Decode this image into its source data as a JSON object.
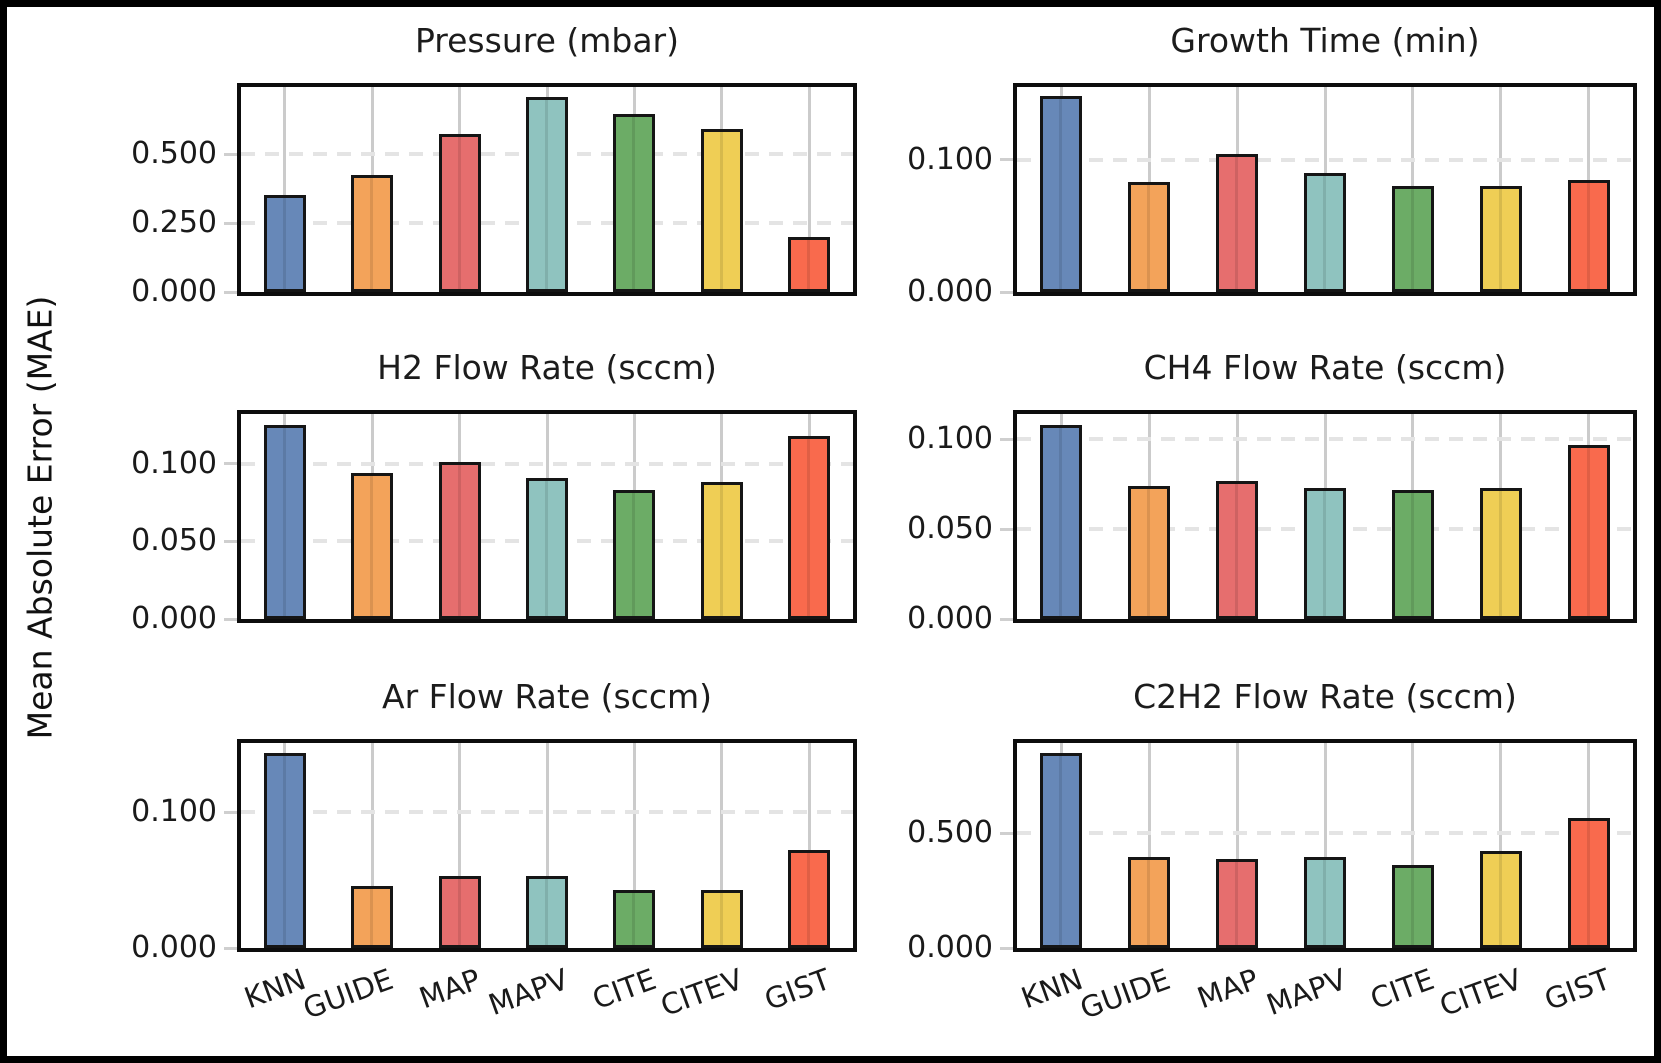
{
  "figure": {
    "ylabel": "Mean Absolute Error (MAE)",
    "methods": [
      "KNN",
      "GUIDE",
      "MAP",
      "MAPV",
      "CITE",
      "CITEV",
      "GIST"
    ],
    "bar_colors": [
      "#6788B8",
      "#F3A35A",
      "#E66E6E",
      "#8FC3BF",
      "#6CAC66",
      "#EFCE55",
      "#F96A4D"
    ],
    "bar_edge_color": "#151515",
    "grid_x_color": "#cbcbcb",
    "grid_y_color": "#e4e4e4",
    "layout": "3 rows x 2 columns of bar subplots, shared y-axis label, x tick labels only under bottom row"
  },
  "chart_data": [
    {
      "type": "bar",
      "title": "Pressure (mbar)",
      "categories": [
        "KNN",
        "GUIDE",
        "MAP",
        "MAPV",
        "CITE",
        "CITEV",
        "GIST"
      ],
      "values": [
        0.352,
        0.425,
        0.573,
        0.708,
        0.648,
        0.594,
        0.2
      ],
      "ylim": [
        0,
        0.745
      ],
      "yticks": [
        0,
        0.25,
        0.5
      ],
      "yticklabels": [
        "0.000",
        "0.250",
        "0.500"
      ],
      "grid": "x solid, y dashed",
      "legend": "none"
    },
    {
      "type": "bar",
      "title": "Growth Time (min)",
      "categories": [
        "KNN",
        "GUIDE",
        "MAP",
        "MAPV",
        "CITE",
        "CITEV",
        "GIST"
      ],
      "values": [
        0.148,
        0.083,
        0.104,
        0.09,
        0.08,
        0.08,
        0.085
      ],
      "ylim": [
        0,
        0.155
      ],
      "yticks": [
        0,
        0.1
      ],
      "yticklabels": [
        "0.000",
        "0.100"
      ],
      "grid": "x solid, y dashed",
      "legend": "none"
    },
    {
      "type": "bar",
      "title": "H2 Flow Rate (sccm)",
      "categories": [
        "KNN",
        "GUIDE",
        "MAP",
        "MAPV",
        "CITE",
        "CITEV",
        "GIST"
      ],
      "values": [
        0.125,
        0.094,
        0.101,
        0.091,
        0.083,
        0.088,
        0.118
      ],
      "ylim": [
        0,
        0.132
      ],
      "yticks": [
        0,
        0.05,
        0.1
      ],
      "yticklabels": [
        "0.000",
        "0.050",
        "0.100"
      ],
      "grid": "x solid, y dashed",
      "legend": "none"
    },
    {
      "type": "bar",
      "title": "CH4 Flow Rate (sccm)",
      "categories": [
        "KNN",
        "GUIDE",
        "MAP",
        "MAPV",
        "CITE",
        "CITEV",
        "GIST"
      ],
      "values": [
        0.108,
        0.074,
        0.077,
        0.073,
        0.072,
        0.073,
        0.097
      ],
      "ylim": [
        0,
        0.114
      ],
      "yticks": [
        0,
        0.05,
        0.1
      ],
      "yticklabels": [
        "0.000",
        "0.050",
        "0.100"
      ],
      "grid": "x solid, y dashed",
      "legend": "none"
    },
    {
      "type": "bar",
      "title": "Ar Flow Rate (sccm)",
      "categories": [
        "KNN",
        "GUIDE",
        "MAP",
        "MAPV",
        "CITE",
        "CITEV",
        "GIST"
      ],
      "values": [
        0.144,
        0.046,
        0.053,
        0.053,
        0.043,
        0.043,
        0.072
      ],
      "ylim": [
        0,
        0.151
      ],
      "yticks": [
        0,
        0.1
      ],
      "yticklabels": [
        "0.000",
        "0.100"
      ],
      "grid": "x solid, y dashed",
      "legend": "none"
    },
    {
      "type": "bar",
      "title": "C2H2 Flow Rate (sccm)",
      "categories": [
        "KNN",
        "GUIDE",
        "MAP",
        "MAPV",
        "CITE",
        "CITEV",
        "GIST"
      ],
      "values": [
        0.852,
        0.399,
        0.39,
        0.399,
        0.363,
        0.423,
        0.567
      ],
      "ylim": [
        0,
        0.895
      ],
      "yticks": [
        0,
        0.5
      ],
      "yticklabels": [
        "0.000",
        "0.500"
      ],
      "grid": "x solid, y dashed",
      "legend": "none"
    }
  ]
}
